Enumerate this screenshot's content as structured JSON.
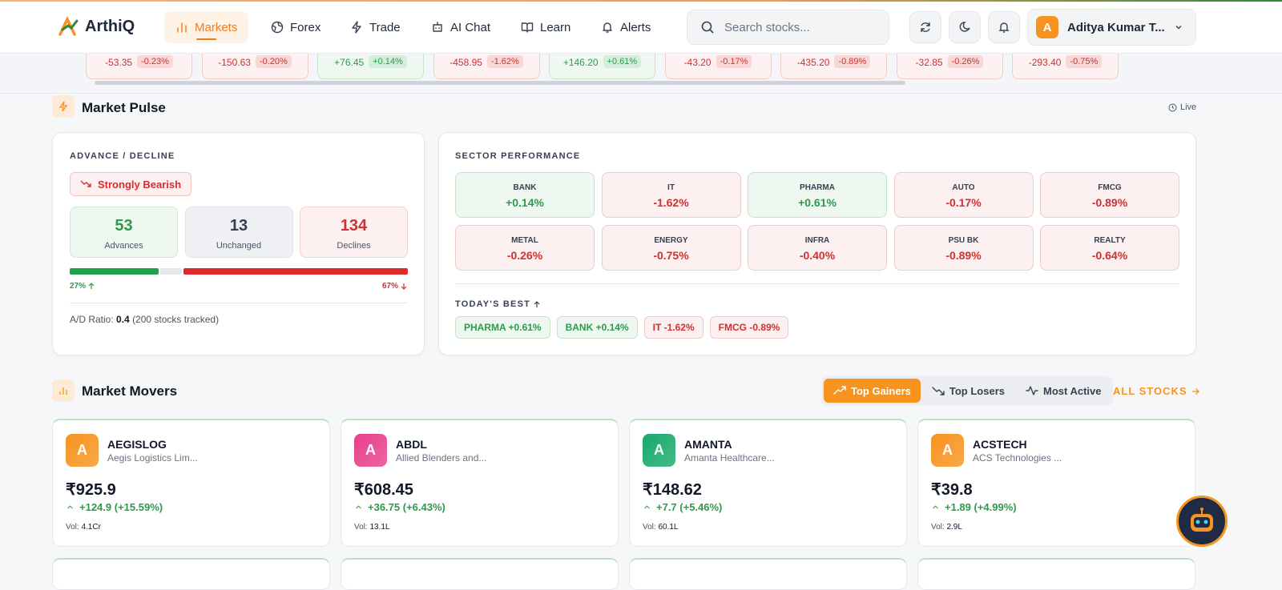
{
  "nav": {
    "logo": "ArthiQ",
    "items": [
      "Markets",
      "Forex",
      "Trade",
      "AI Chat",
      "Learn",
      "Alerts"
    ],
    "search": "Search stocks...",
    "user_initial": "A",
    "user_name": "Aditya Kumar T..."
  },
  "ticker": [
    {
      "change": "-53.35",
      "pct": "-0.23%"
    },
    {
      "change": "-150.63",
      "pct": "-0.20%"
    },
    {
      "change": "+76.45",
      "pct": "+0.14%"
    },
    {
      "change": "-458.95",
      "pct": "-1.62%"
    },
    {
      "change": "+146.20",
      "pct": "+0.61%"
    },
    {
      "change": "-43.20",
      "pct": "-0.17%"
    },
    {
      "change": "-435.20",
      "pct": "-0.89%"
    },
    {
      "change": "-32.85",
      "pct": "-0.26%"
    },
    {
      "change": "-293.40",
      "pct": "-0.75%"
    }
  ],
  "pulse": {
    "title": "Market Pulse",
    "live": "Live"
  },
  "advance_decline": {
    "heading": "ADVANCE / DECLINE",
    "sentiment": "Strongly Bearish",
    "stats": [
      {
        "value": 53,
        "label": "Advances"
      },
      {
        "value": 13,
        "label": "Unchanged"
      },
      {
        "value": 134,
        "label": "Declines"
      }
    ],
    "left_pct": "27%",
    "right_pct": "67%",
    "ratio_label": "A/D Ratio:",
    "ratio": "0.4",
    "tracked": "(200 stocks tracked)"
  },
  "sectors": {
    "heading": "SECTOR PERFORMANCE",
    "items": [
      {
        "name": "BANK",
        "change": "+0.14%"
      },
      {
        "name": "IT",
        "change": "-1.62%"
      },
      {
        "name": "PHARMA",
        "change": "+0.61%"
      },
      {
        "name": "AUTO",
        "change": "-0.17%"
      },
      {
        "name": "FMCG",
        "change": "-0.89%"
      },
      {
        "name": "METAL",
        "change": "-0.26%"
      },
      {
        "name": "ENERGY",
        "change": "-0.75%"
      },
      {
        "name": "INFRA",
        "change": "-0.40%"
      },
      {
        "name": "PSU BK",
        "change": "-0.89%"
      },
      {
        "name": "REALTY",
        "change": "-0.64%"
      }
    ],
    "best_heading": "TODAY'S BEST",
    "best": [
      "PHARMA +0.61%",
      "BANK +0.14%",
      "IT -1.62%",
      "FMCG -0.89%"
    ]
  },
  "movers": {
    "title": "Market Movers",
    "tabs": [
      "Top Gainers",
      "Top Losers",
      "Most Active"
    ],
    "all_link": "ALL STOCKS",
    "cards": [
      {
        "initial": "A",
        "color": "#f7931e",
        "symbol": "AEGISLOG",
        "name": "Aegis Logistics Lim...",
        "price": "₹925.9",
        "change": "+124.9 (+15.59%)",
        "vol_label": "Vol:",
        "vol": "4.1Cr"
      },
      {
        "initial": "A",
        "color": "#e83e8c",
        "symbol": "ABDL",
        "name": "Allied Blenders and...",
        "price": "₹608.45",
        "change": "+36.75 (+6.43%)",
        "vol_label": "Vol:",
        "vol": "13.1L"
      },
      {
        "initial": "A",
        "color": "#18a96b",
        "symbol": "AMANTA",
        "name": "Amanta Healthcare...",
        "price": "₹148.62",
        "change": "+7.7 (+5.46%)",
        "vol_label": "Vol:",
        "vol": "60.1L"
      },
      {
        "initial": "A",
        "color": "#f7931e",
        "symbol": "ACSTECH",
        "name": "ACS Technologies ...",
        "price": "₹39.8",
        "change": "+1.89 (+4.99%)",
        "vol_label": "Vol:",
        "vol": "2.9L"
      }
    ]
  }
}
